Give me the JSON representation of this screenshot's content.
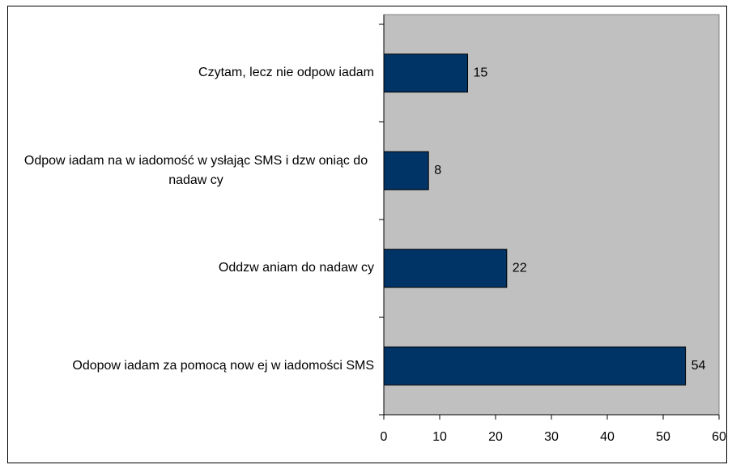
{
  "chart_data": {
    "type": "bar",
    "orientation": "horizontal",
    "categories": [
      "Czytam, lecz nie odpow iadam",
      "Odpow iadam na w iadomość w ysłając SMS i dzw oniąc do nadaw cy",
      "Oddzw aniam do nadaw cy",
      "Odopow iadam za pomocą now ej w iadomości SMS"
    ],
    "values": [
      15,
      8,
      22,
      54
    ],
    "color": "#003366",
    "xlim": [
      0,
      60
    ],
    "xticks": [
      0,
      10,
      20,
      30,
      40,
      50,
      60
    ],
    "grid": false,
    "plot_background": "#c0c0c0"
  }
}
